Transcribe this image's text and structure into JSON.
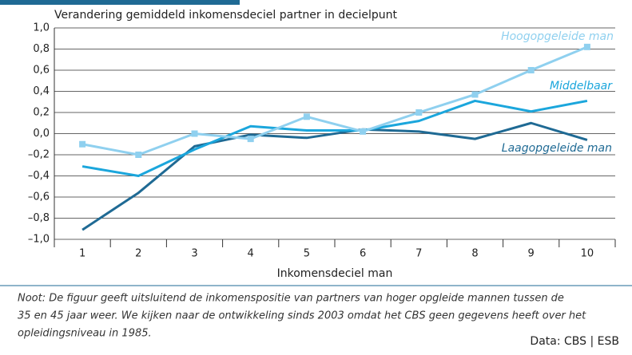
{
  "chart_data": {
    "type": "line",
    "y_axis_label": "Verandering gemiddeld inkomensdeciel partner in decielpunt",
    "x_axis_label": "Inkomensdeciel man",
    "categories": [
      "1",
      "2",
      "3",
      "4",
      "5",
      "6",
      "7",
      "8",
      "9",
      "10"
    ],
    "series": [
      {
        "name": "Hoogopgeleide man",
        "color": "#8fd0ef",
        "marker": "square",
        "values": [
          -0.1,
          -0.2,
          0.0,
          -0.05,
          0.16,
          0.02,
          0.2,
          0.37,
          0.6,
          0.82
        ]
      },
      {
        "name": "Middelbaar",
        "color": "#1ba6dc",
        "values": [
          -0.31,
          -0.4,
          -0.15,
          0.07,
          0.03,
          0.03,
          0.12,
          0.31,
          0.21,
          0.31
        ]
      },
      {
        "name": "Laagopgeleide man",
        "color": "#1f6a94",
        "values": [
          -0.91,
          -0.56,
          -0.12,
          -0.01,
          -0.04,
          0.04,
          0.02,
          -0.05,
          0.1,
          -0.06
        ]
      }
    ],
    "ylim": [
      -1.0,
      1.0
    ],
    "yticks": [
      {
        "value": -1.0,
        "label": "–1,0"
      },
      {
        "value": -0.8,
        "label": "–0,8"
      },
      {
        "value": -0.6,
        "label": "–0,6"
      },
      {
        "value": -0.4,
        "label": "–0,4"
      },
      {
        "value": -0.2,
        "label": "–0,2"
      },
      {
        "value": 0.0,
        "label": "0,0"
      },
      {
        "value": 0.2,
        "label": "0,2"
      },
      {
        "value": 0.4,
        "label": "0,4"
      },
      {
        "value": 0.6,
        "label": "0,6"
      },
      {
        "value": 0.8,
        "label": "0,8"
      },
      {
        "value": 1.0,
        "label": "1,0"
      }
    ],
    "grid": true,
    "note": [
      "Noot: De figuur geeft uitsluitend de inkomenspositie van partners van hoger opgleide mannen tussen de",
      "35 en 45 jaar weer. We kijken naar de ontwikkeling sinds 2003 omdat het CBS geen gegevens heeft over het",
      "opleidingsniveau in 1985."
    ],
    "source": "Data: CBS | ESB"
  }
}
